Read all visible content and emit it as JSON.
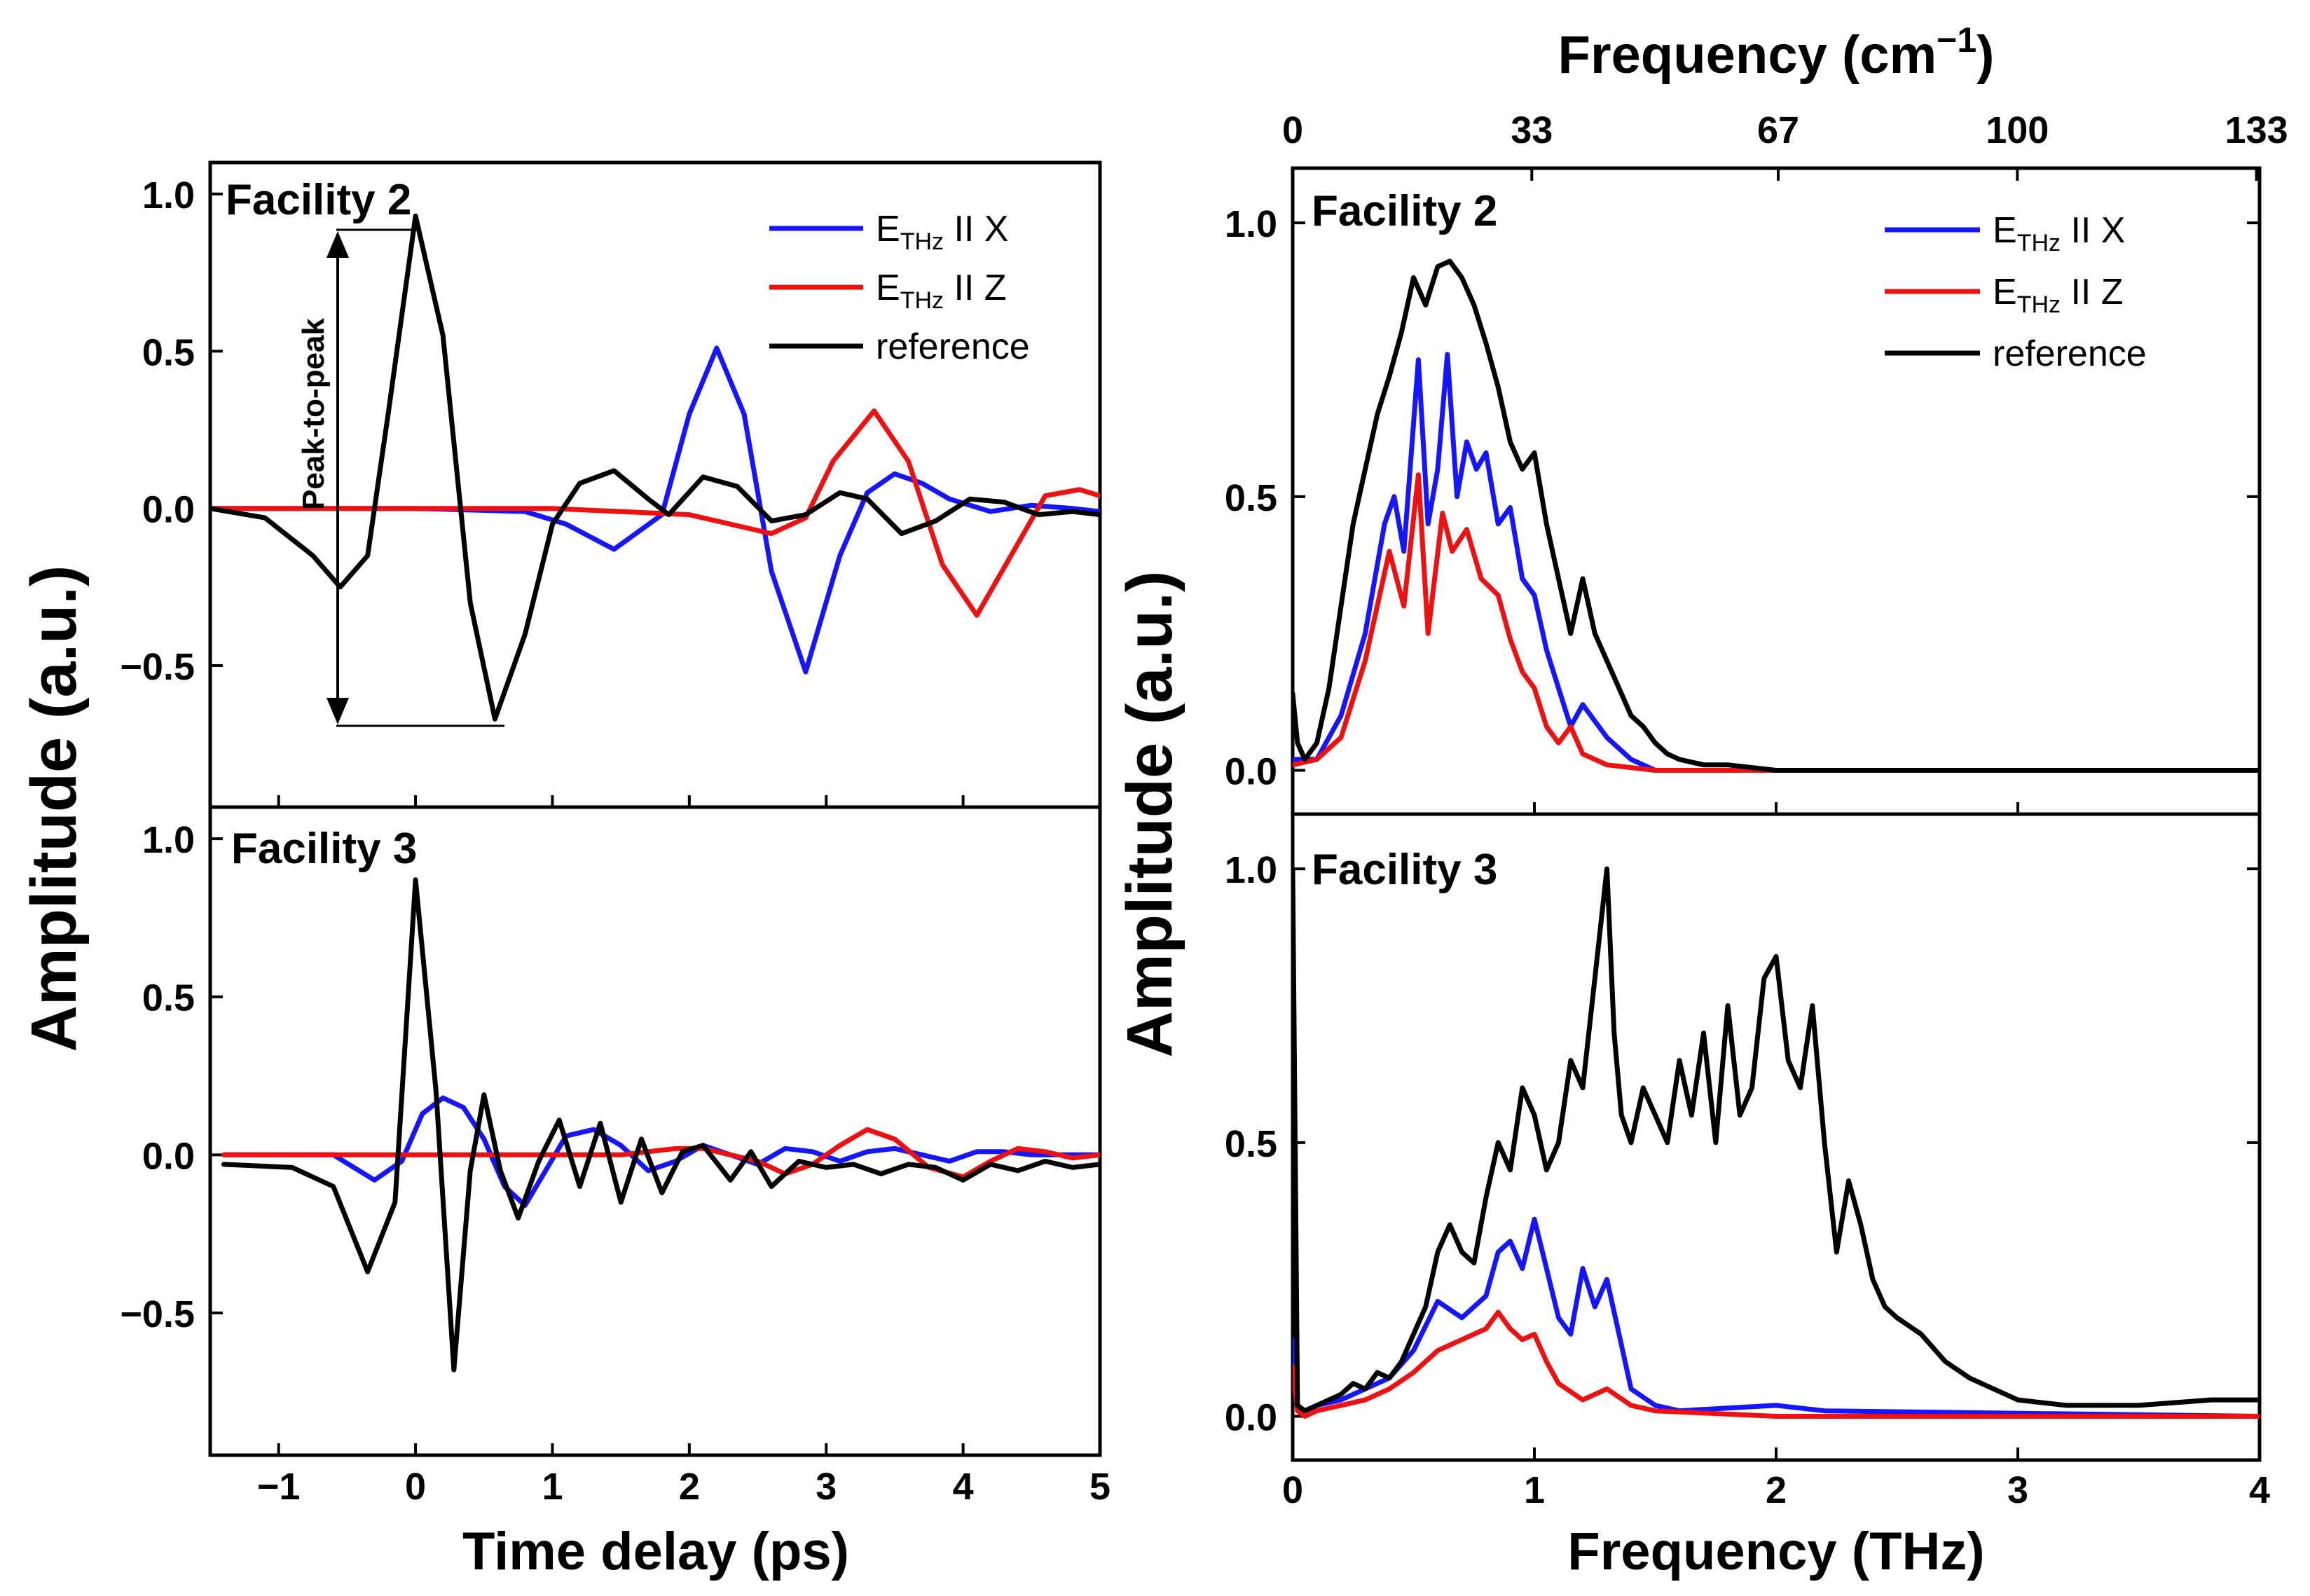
{
  "colors": {
    "x": "#1515ff",
    "z": "#ee1111",
    "reference": "#000000"
  },
  "legend": {
    "x": {
      "main": "E",
      "sub": "THz",
      "rest": " II X"
    },
    "z": {
      "main": "E",
      "sub": "THz",
      "rest": " II Z"
    },
    "reference": "reference"
  },
  "time_axis": {
    "xlabel": "Time delay (ps)",
    "ylabel": "Amplitude (a.u.)",
    "xticks": [
      "−1",
      "0",
      "1",
      "2",
      "3",
      "4",
      "5"
    ],
    "top_yticks": [
      "1.0",
      "0.5",
      "0.0",
      "−0.5"
    ],
    "bottom_yticks": [
      "1.0",
      "0.5",
      "0.0",
      "−0.5"
    ],
    "facility2": "Facility  2",
    "facility3": "Facility 3",
    "annotation": "Peak-to-peak"
  },
  "freq_axis": {
    "xlabel": "Frequency (THz)",
    "ylabel": "Amplitude (a.u.)",
    "top_label_main": "Frequency (cm",
    "top_label_sup": "−1",
    "top_label_close": ")",
    "xticks": [
      "0",
      "1",
      "2",
      "3",
      "4"
    ],
    "top_ticks": [
      "0",
      "33",
      "67",
      "100",
      "133"
    ],
    "top_yticks": [
      "1.0",
      "0.5",
      "0.0"
    ],
    "bottom_yticks": [
      "1.0",
      "0.5",
      "0.0"
    ],
    "facility2": "Facility  2",
    "facility3": "Facility 3"
  },
  "chart_data": [
    {
      "id": "time-facility-2",
      "type": "line",
      "title": "Facility  2",
      "xlabel": "Time delay (ps)",
      "ylabel": "Amplitude (a.u.)",
      "xlim": [
        -1.5,
        5
      ],
      "ylim": [
        -0.95,
        1.1
      ],
      "series": [
        {
          "name": "E_THz II X",
          "color_key": "x",
          "x": [
            -1.5,
            0.0,
            0.8,
            1.1,
            1.45,
            1.8,
            2.0,
            2.2,
            2.4,
            2.6,
            2.85,
            3.1,
            3.3,
            3.5,
            3.7,
            3.9,
            4.2,
            4.5,
            4.8,
            5.0
          ],
          "y": [
            0,
            0,
            -0.01,
            -0.05,
            -0.13,
            -0.02,
            0.3,
            0.51,
            0.3,
            -0.2,
            -0.52,
            -0.15,
            0.05,
            0.11,
            0.08,
            0.03,
            -0.01,
            0.01,
            0.0,
            -0.01
          ]
        },
        {
          "name": "E_THz II Z",
          "color_key": "z",
          "x": [
            -1.5,
            0.0,
            1.0,
            2.0,
            2.3,
            2.6,
            2.85,
            3.05,
            3.35,
            3.6,
            3.85,
            4.1,
            4.35,
            4.6,
            4.85,
            5.0
          ],
          "y": [
            0,
            0,
            0,
            -0.02,
            -0.05,
            -0.08,
            -0.03,
            0.15,
            0.31,
            0.15,
            -0.18,
            -0.34,
            -0.15,
            0.04,
            0.06,
            0.04
          ]
        },
        {
          "name": "reference",
          "color_key": "reference",
          "x": [
            -1.5,
            -1.1,
            -0.75,
            -0.55,
            -0.35,
            -0.2,
            0.0,
            0.2,
            0.4,
            0.58,
            0.8,
            1.0,
            1.2,
            1.45,
            1.7,
            1.85,
            2.1,
            2.35,
            2.6,
            2.85,
            3.1,
            3.3,
            3.55,
            3.8,
            4.05,
            4.3,
            4.55,
            4.8,
            5.0
          ],
          "y": [
            0,
            -0.03,
            -0.15,
            -0.25,
            -0.15,
            0.3,
            0.93,
            0.55,
            -0.3,
            -0.67,
            -0.4,
            -0.05,
            0.08,
            0.12,
            0.03,
            -0.02,
            0.1,
            0.07,
            -0.04,
            -0.02,
            0.05,
            0.03,
            -0.08,
            -0.04,
            0.03,
            0.02,
            -0.02,
            -0.01,
            -0.02
          ]
        }
      ]
    },
    {
      "id": "time-facility-3",
      "type": "line",
      "title": "Facility 3",
      "xlabel": "Time delay (ps)",
      "ylabel": "Amplitude (a.u.)",
      "xlim": [
        -1.5,
        5
      ],
      "ylim": [
        -0.95,
        1.1
      ],
      "series": [
        {
          "name": "E_THz II X",
          "color_key": "x",
          "x": [
            -1.4,
            -0.6,
            -0.3,
            -0.1,
            0.05,
            0.2,
            0.35,
            0.5,
            0.65,
            0.8,
            0.95,
            1.1,
            1.3,
            1.5,
            1.7,
            1.9,
            2.1,
            2.3,
            2.5,
            2.7,
            2.9,
            3.1,
            3.3,
            3.5,
            3.7,
            3.9,
            4.1,
            4.3,
            4.5,
            4.7,
            5.0
          ],
          "y": [
            0,
            0,
            -0.08,
            -0.02,
            0.13,
            0.18,
            0.15,
            0.05,
            -0.1,
            -0.16,
            -0.05,
            0.06,
            0.08,
            0.03,
            -0.05,
            -0.02,
            0.03,
            0.0,
            -0.03,
            0.02,
            0.01,
            -0.02,
            0.01,
            0.02,
            0.0,
            -0.02,
            0.01,
            0.01,
            0.0,
            0.0,
            0.0
          ]
        },
        {
          "name": "E_THz II Z",
          "color_key": "z",
          "x": [
            -1.4,
            1.0,
            1.5,
            1.9,
            2.1,
            2.3,
            2.5,
            2.7,
            2.9,
            3.1,
            3.3,
            3.5,
            3.75,
            4.0,
            4.2,
            4.4,
            4.6,
            4.8,
            5.0
          ],
          "y": [
            0,
            0,
            0,
            0.02,
            0.02,
            0.0,
            -0.02,
            -0.06,
            -0.03,
            0.03,
            0.08,
            0.05,
            -0.04,
            -0.07,
            -0.02,
            0.02,
            0.01,
            -0.01,
            0.0
          ]
        },
        {
          "name": "reference",
          "color_key": "reference",
          "x": [
            -1.4,
            -0.9,
            -0.6,
            -0.35,
            -0.15,
            0.0,
            0.15,
            0.28,
            0.4,
            0.5,
            0.62,
            0.75,
            0.9,
            1.05,
            1.2,
            1.35,
            1.5,
            1.65,
            1.8,
            1.95,
            2.1,
            2.3,
            2.45,
            2.6,
            2.8,
            3.0,
            3.2,
            3.4,
            3.6,
            3.8,
            4.0,
            4.2,
            4.4,
            4.6,
            4.8,
            5.0
          ],
          "y": [
            -0.03,
            -0.04,
            -0.1,
            -0.37,
            -0.15,
            0.87,
            0.2,
            -0.68,
            -0.05,
            0.19,
            -0.05,
            -0.2,
            -0.02,
            0.11,
            -0.1,
            0.1,
            -0.15,
            0.05,
            -0.12,
            0.01,
            0.03,
            -0.08,
            0.01,
            -0.1,
            -0.02,
            -0.04,
            -0.03,
            -0.06,
            -0.03,
            -0.04,
            -0.08,
            -0.03,
            -0.05,
            -0.02,
            -0.04,
            -0.03
          ]
        }
      ]
    },
    {
      "id": "freq-facility-2",
      "type": "line",
      "title": "Facility  2",
      "xlabel": "Frequency (THz)",
      "ylabel": "Amplitude (a.u.)",
      "xlim": [
        0,
        4
      ],
      "ylim": [
        -0.08,
        1.1
      ],
      "series": [
        {
          "name": "E_THz II X",
          "color_key": "x",
          "x": [
            0,
            0.1,
            0.2,
            0.3,
            0.38,
            0.42,
            0.46,
            0.52,
            0.56,
            0.6,
            0.64,
            0.68,
            0.72,
            0.76,
            0.8,
            0.85,
            0.9,
            0.95,
            1.0,
            1.05,
            1.1,
            1.15,
            1.2,
            1.3,
            1.4,
            1.5,
            1.7,
            2.0,
            4.0
          ],
          "y": [
            0.02,
            0.02,
            0.1,
            0.25,
            0.45,
            0.5,
            0.4,
            0.75,
            0.45,
            0.55,
            0.76,
            0.5,
            0.6,
            0.55,
            0.58,
            0.45,
            0.48,
            0.35,
            0.32,
            0.22,
            0.15,
            0.08,
            0.12,
            0.06,
            0.02,
            0.0,
            0.0,
            0.0,
            0.0
          ]
        },
        {
          "name": "E_THz II Z",
          "color_key": "z",
          "x": [
            0,
            0.1,
            0.2,
            0.3,
            0.4,
            0.46,
            0.52,
            0.56,
            0.62,
            0.66,
            0.72,
            0.78,
            0.85,
            0.9,
            0.95,
            1.0,
            1.05,
            1.1,
            1.15,
            1.2,
            1.3,
            1.5,
            2.0,
            4.0
          ],
          "y": [
            0.01,
            0.02,
            0.06,
            0.2,
            0.4,
            0.3,
            0.54,
            0.25,
            0.47,
            0.4,
            0.44,
            0.35,
            0.32,
            0.24,
            0.18,
            0.15,
            0.08,
            0.05,
            0.08,
            0.03,
            0.01,
            0.0,
            0.0,
            0.0
          ]
        },
        {
          "name": "reference",
          "color_key": "reference",
          "x": [
            0,
            0.02,
            0.05,
            0.1,
            0.15,
            0.2,
            0.25,
            0.3,
            0.35,
            0.4,
            0.45,
            0.5,
            0.55,
            0.6,
            0.65,
            0.7,
            0.75,
            0.8,
            0.85,
            0.9,
            0.95,
            1.0,
            1.05,
            1.1,
            1.15,
            1.2,
            1.25,
            1.3,
            1.35,
            1.4,
            1.45,
            1.5,
            1.55,
            1.6,
            1.7,
            1.8,
            2.0,
            2.5,
            4.0
          ],
          "y": [
            0.14,
            0.05,
            0.02,
            0.05,
            0.15,
            0.3,
            0.45,
            0.55,
            0.65,
            0.72,
            0.8,
            0.9,
            0.85,
            0.92,
            0.93,
            0.9,
            0.85,
            0.78,
            0.7,
            0.6,
            0.55,
            0.58,
            0.45,
            0.35,
            0.25,
            0.35,
            0.25,
            0.2,
            0.15,
            0.1,
            0.08,
            0.05,
            0.03,
            0.02,
            0.01,
            0.01,
            0.0,
            0.0,
            0.0
          ]
        }
      ]
    },
    {
      "id": "freq-facility-3",
      "type": "line",
      "title": "Facility 3",
      "xlabel": "Frequency (THz)",
      "ylabel": "Amplitude (a.u.)",
      "xlim": [
        0,
        4
      ],
      "ylim": [
        -0.08,
        1.1
      ],
      "series": [
        {
          "name": "E_THz II X",
          "color_key": "x",
          "x": [
            0,
            0.02,
            0.05,
            0.1,
            0.2,
            0.3,
            0.4,
            0.5,
            0.6,
            0.7,
            0.8,
            0.85,
            0.9,
            0.95,
            1.0,
            1.05,
            1.1,
            1.15,
            1.2,
            1.25,
            1.3,
            1.35,
            1.4,
            1.5,
            1.6,
            2.0,
            2.2,
            4.0
          ],
          "y": [
            0.14,
            0.02,
            0.01,
            0.02,
            0.03,
            0.05,
            0.07,
            0.12,
            0.21,
            0.18,
            0.22,
            0.3,
            0.32,
            0.27,
            0.36,
            0.27,
            0.18,
            0.15,
            0.27,
            0.2,
            0.25,
            0.15,
            0.05,
            0.02,
            0.01,
            0.02,
            0.01,
            0.0
          ]
        },
        {
          "name": "E_THz II Z",
          "color_key": "z",
          "x": [
            0,
            0.02,
            0.05,
            0.1,
            0.2,
            0.3,
            0.4,
            0.5,
            0.6,
            0.7,
            0.8,
            0.85,
            0.9,
            0.95,
            1.0,
            1.05,
            1.1,
            1.2,
            1.3,
            1.4,
            1.5,
            2.0,
            4.0
          ],
          "y": [
            0.09,
            0.01,
            0.0,
            0.01,
            0.02,
            0.03,
            0.05,
            0.08,
            0.12,
            0.14,
            0.16,
            0.19,
            0.16,
            0.14,
            0.15,
            0.1,
            0.06,
            0.03,
            0.05,
            0.02,
            0.01,
            0.0,
            0.0
          ]
        },
        {
          "name": "reference",
          "color_key": "reference",
          "x": [
            0,
            0.02,
            0.05,
            0.1,
            0.15,
            0.2,
            0.25,
            0.3,
            0.35,
            0.4,
            0.45,
            0.5,
            0.55,
            0.6,
            0.65,
            0.7,
            0.75,
            0.8,
            0.85,
            0.9,
            0.95,
            1.0,
            1.05,
            1.1,
            1.15,
            1.2,
            1.25,
            1.3,
            1.33,
            1.36,
            1.4,
            1.45,
            1.5,
            1.55,
            1.6,
            1.65,
            1.7,
            1.75,
            1.8,
            1.85,
            1.9,
            1.95,
            2.0,
            2.05,
            2.1,
            2.15,
            2.2,
            2.25,
            2.3,
            2.35,
            2.4,
            2.45,
            2.5,
            2.6,
            2.7,
            2.8,
            2.9,
            3.0,
            3.2,
            3.5,
            3.8,
            4.0
          ],
          "y": [
            1.0,
            0.02,
            0.01,
            0.02,
            0.03,
            0.04,
            0.06,
            0.05,
            0.08,
            0.07,
            0.1,
            0.15,
            0.2,
            0.3,
            0.35,
            0.3,
            0.28,
            0.4,
            0.5,
            0.45,
            0.6,
            0.55,
            0.45,
            0.5,
            0.65,
            0.6,
            0.8,
            1.0,
            0.7,
            0.55,
            0.5,
            0.6,
            0.55,
            0.5,
            0.65,
            0.55,
            0.7,
            0.5,
            0.75,
            0.55,
            0.6,
            0.8,
            0.84,
            0.65,
            0.6,
            0.75,
            0.5,
            0.3,
            0.43,
            0.35,
            0.25,
            0.2,
            0.18,
            0.15,
            0.1,
            0.07,
            0.05,
            0.03,
            0.02,
            0.02,
            0.03,
            0.03
          ]
        }
      ]
    }
  ]
}
